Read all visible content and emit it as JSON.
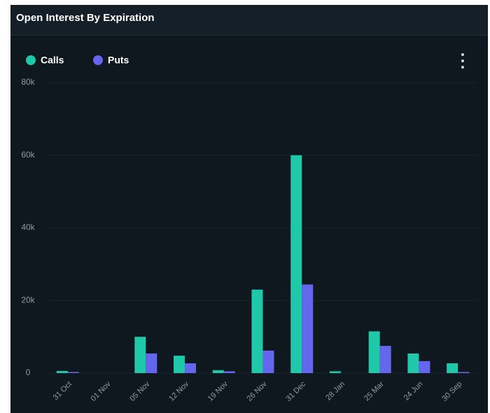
{
  "chart_data": {
    "type": "bar",
    "title": "Open Interest By Expiration",
    "categories": [
      "31 Oct",
      "01 Nov",
      "05 Nov",
      "12 Nov",
      "19 Nov",
      "26 Nov",
      "31 Dec",
      "28 Jan",
      "25 Mar",
      "24 Jun",
      "30 Sep"
    ],
    "series": [
      {
        "name": "Calls",
        "color": "#1fc8a8",
        "values": [
          600,
          0,
          10000,
          4800,
          800,
          23000,
          60000,
          500,
          11500,
          5400,
          2700
        ]
      },
      {
        "name": "Puts",
        "color": "#6466ee",
        "values": [
          300,
          0,
          5400,
          2700,
          500,
          6200,
          24400,
          0,
          7500,
          3300,
          300
        ]
      }
    ],
    "ylim": [
      0,
      80000
    ],
    "yticks": [
      0,
      {
        "value": 20000,
        "label": "20k"
      },
      {
        "value": 40000,
        "label": "40k"
      },
      {
        "value": 60000,
        "label": "60k"
      },
      {
        "value": 80000,
        "label": "80k"
      }
    ],
    "grid": true,
    "legend": "top-left"
  }
}
